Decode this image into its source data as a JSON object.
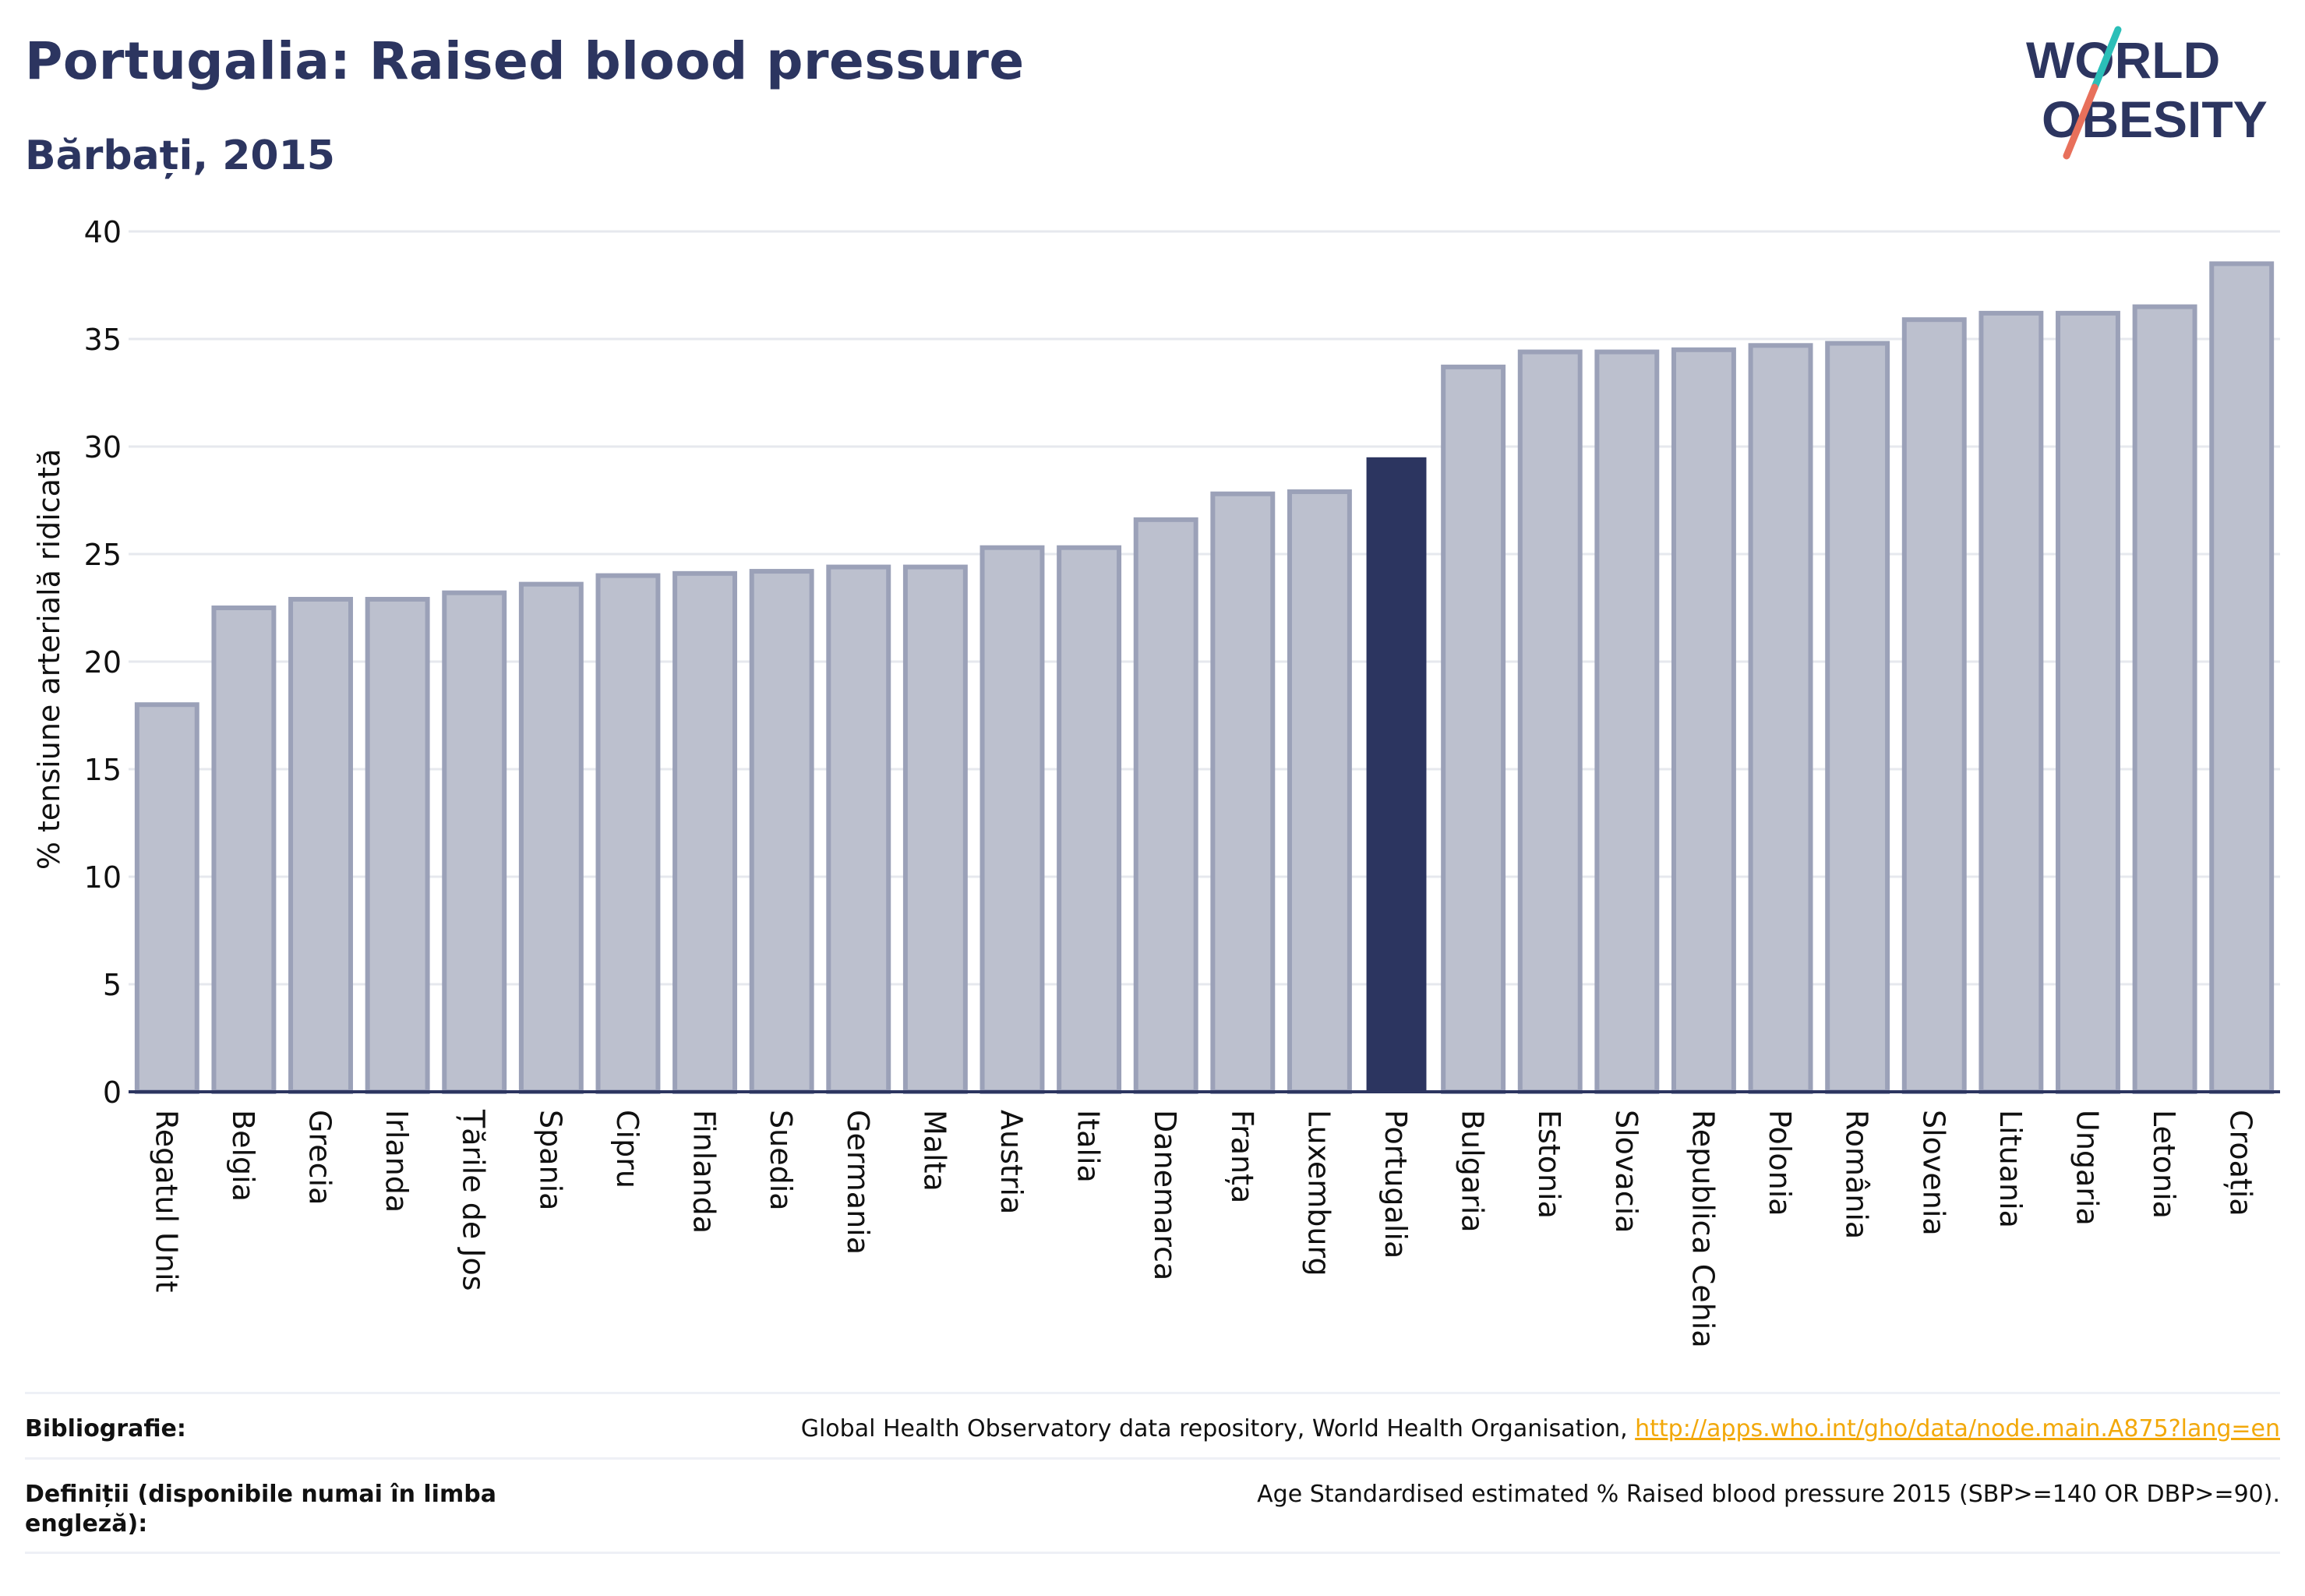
{
  "header": {
    "title": "Portugalia: Raised blood pressure",
    "subtitle": "Bărbați, 2015"
  },
  "logo": {
    "line1": "WORLD",
    "line2": "OBESITY",
    "colors": {
      "text": "#2c3560",
      "slash_top": "#2bbfb8",
      "slash_bottom": "#e8705b"
    }
  },
  "chart_data": {
    "type": "bar",
    "ylabel": "% tensiune arterială ridicată",
    "xlabel": "",
    "ylim": [
      0,
      40
    ],
    "yticks": [
      0,
      5,
      10,
      15,
      20,
      25,
      30,
      35,
      40
    ],
    "grid": true,
    "highlight": "Portugalia",
    "colors": {
      "bar": "#bcc0ce",
      "bar_edge": "#9ba1b8",
      "highlight": "#2c3560",
      "axis": "#2c3560",
      "grid": "#e6e8ee"
    },
    "categories": [
      "Regatul Unit",
      "Belgia",
      "Grecia",
      "Irlanda",
      "Țările de Jos",
      "Spania",
      "Cipru",
      "Finlanda",
      "Suedia",
      "Germania",
      "Malta",
      "Austria",
      "Italia",
      "Danemarca",
      "Franța",
      "Luxemburg",
      "Portugalia",
      "Bulgaria",
      "Estonia",
      "Slovacia",
      "Republica Cehia",
      "Polonia",
      "România",
      "Slovenia",
      "Lituania",
      "Ungaria",
      "Letonia",
      "Croația"
    ],
    "values": [
      18.0,
      22.5,
      22.9,
      22.9,
      23.2,
      23.6,
      24.0,
      24.1,
      24.2,
      24.4,
      24.4,
      25.3,
      25.3,
      26.6,
      27.8,
      27.9,
      29.5,
      33.7,
      34.4,
      34.4,
      34.5,
      34.7,
      34.8,
      35.9,
      36.2,
      36.2,
      36.5,
      38.5
    ]
  },
  "footer": {
    "bibliography_label": "Bibliografie:",
    "bibliography_text": "Global Health Observatory data repository, World Health Organisation, ",
    "bibliography_link": "http://apps.who.int/gho/data/node.main.A875?lang=en",
    "definitions_label": "Definiții (disponibile numai în limba engleză):",
    "definitions_text": "Age Standardised estimated % Raised blood pressure 2015 (SBP>=140 OR DBP>=90)."
  }
}
